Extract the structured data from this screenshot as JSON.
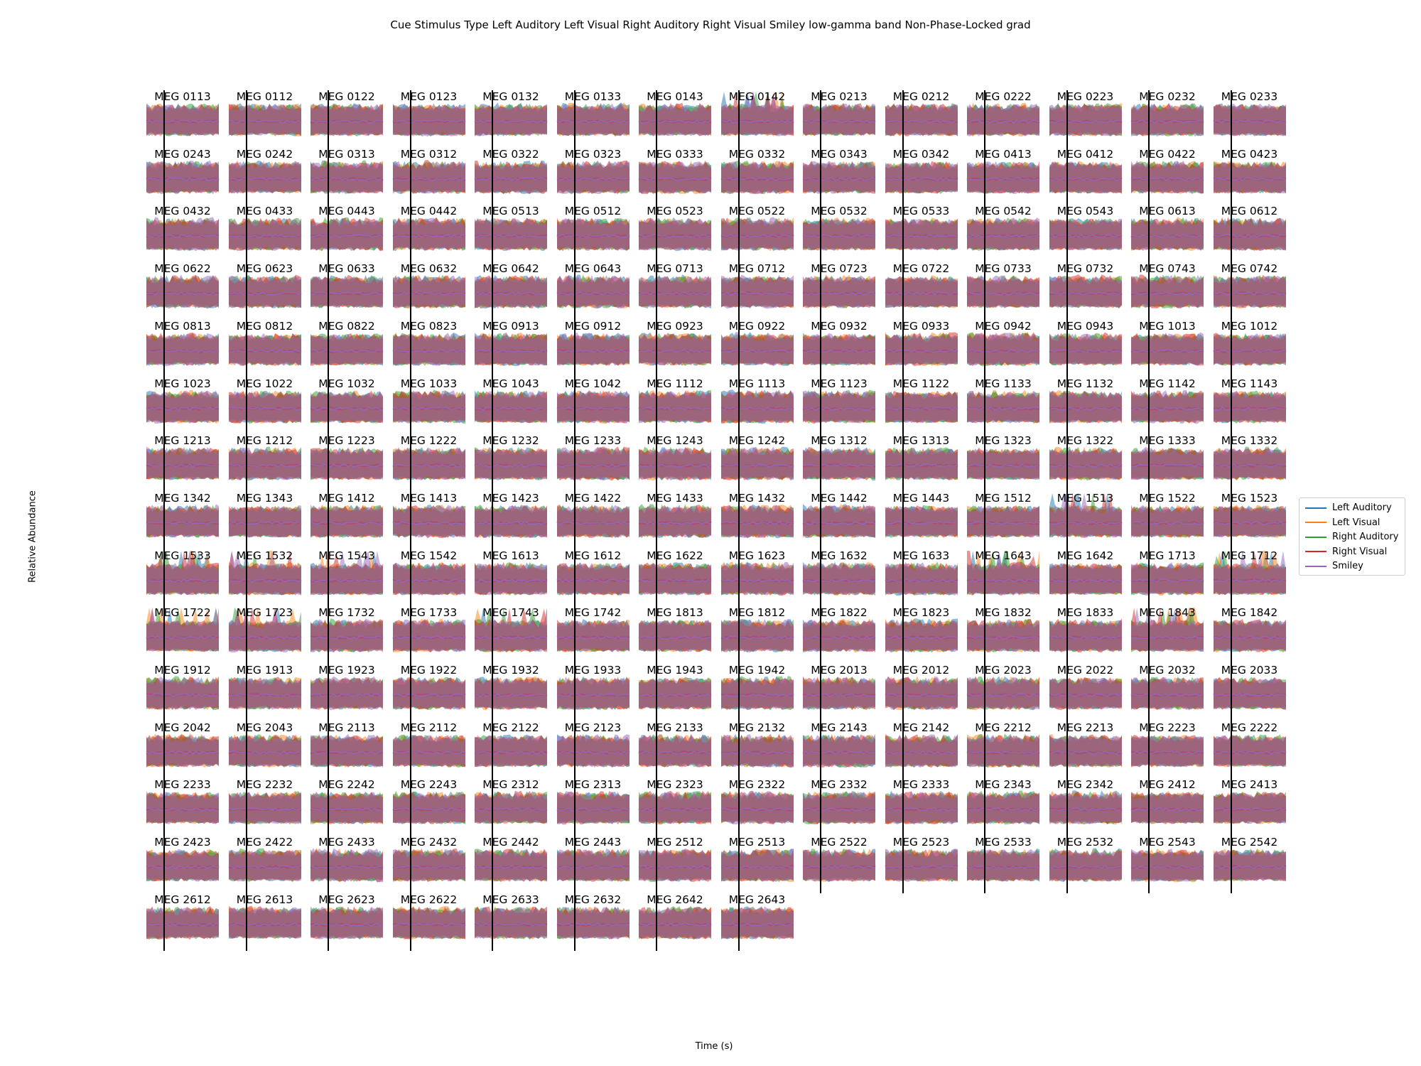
{
  "chart_data": {
    "type": "area",
    "title": "Cue Stimulus Type Left Auditory Left Visual Right Auditory Right Visual Smiley low-gamma band Non-Phase-Locked grad",
    "xlabel": "Time (s)",
    "ylabel": "Relative Abundance",
    "legend": {
      "placement": "right",
      "entries": [
        "Left Auditory",
        "Left Visual",
        "Right Auditory",
        "Right Visual",
        "Smiley"
      ]
    },
    "series_colors": {
      "Left Auditory": "#1f77b4",
      "Left Visual": "#ff7f0e",
      "Right Auditory": "#2ca02c",
      "Right Visual": "#d62728",
      "Smiley": "#9467bd"
    },
    "grid": false,
    "ticks_shown": false,
    "stimulus_marker": "vertical black line near start of each panel",
    "panels": [
      "MEG 0113",
      "MEG 0112",
      "MEG 0122",
      "MEG 0123",
      "MEG 0132",
      "MEG 0133",
      "MEG 0143",
      "MEG 0142",
      "MEG 0213",
      "MEG 0212",
      "MEG 0222",
      "MEG 0223",
      "MEG 0232",
      "MEG 0233",
      "MEG 0243",
      "MEG 0242",
      "MEG 0313",
      "MEG 0312",
      "MEG 0322",
      "MEG 0323",
      "MEG 0333",
      "MEG 0332",
      "MEG 0343",
      "MEG 0342",
      "MEG 0413",
      "MEG 0412",
      "MEG 0422",
      "MEG 0423",
      "MEG 0432",
      "MEG 0433",
      "MEG 0443",
      "MEG 0442",
      "MEG 0513",
      "MEG 0512",
      "MEG 0523",
      "MEG 0522",
      "MEG 0532",
      "MEG 0533",
      "MEG 0542",
      "MEG 0543",
      "MEG 0613",
      "MEG 0612",
      "MEG 0622",
      "MEG 0623",
      "MEG 0633",
      "MEG 0632",
      "MEG 0642",
      "MEG 0643",
      "MEG 0713",
      "MEG 0712",
      "MEG 0723",
      "MEG 0722",
      "MEG 0733",
      "MEG 0732",
      "MEG 0743",
      "MEG 0742",
      "MEG 0813",
      "MEG 0812",
      "MEG 0822",
      "MEG 0823",
      "MEG 0913",
      "MEG 0912",
      "MEG 0923",
      "MEG 0922",
      "MEG 0932",
      "MEG 0933",
      "MEG 0942",
      "MEG 0943",
      "MEG 1013",
      "MEG 1012",
      "MEG 1023",
      "MEG 1022",
      "MEG 1032",
      "MEG 1033",
      "MEG 1043",
      "MEG 1042",
      "MEG 1112",
      "MEG 1113",
      "MEG 1123",
      "MEG 1122",
      "MEG 1133",
      "MEG 1132",
      "MEG 1142",
      "MEG 1143",
      "MEG 1213",
      "MEG 1212",
      "MEG 1223",
      "MEG 1222",
      "MEG 1232",
      "MEG 1233",
      "MEG 1243",
      "MEG 1242",
      "MEG 1312",
      "MEG 1313",
      "MEG 1323",
      "MEG 1322",
      "MEG 1333",
      "MEG 1332",
      "MEG 1342",
      "MEG 1343",
      "MEG 1412",
      "MEG 1413",
      "MEG 1423",
      "MEG 1422",
      "MEG 1433",
      "MEG 1432",
      "MEG 1442",
      "MEG 1443",
      "MEG 1512",
      "MEG 1513",
      "MEG 1522",
      "MEG 1523",
      "MEG 1533",
      "MEG 1532",
      "MEG 1543",
      "MEG 1542",
      "MEG 1613",
      "MEG 1612",
      "MEG 1622",
      "MEG 1623",
      "MEG 1632",
      "MEG 1633",
      "MEG 1643",
      "MEG 1642",
      "MEG 1713",
      "MEG 1712",
      "MEG 1722",
      "MEG 1723",
      "MEG 1732",
      "MEG 1733",
      "MEG 1743",
      "MEG 1742",
      "MEG 1813",
      "MEG 1812",
      "MEG 1822",
      "MEG 1823",
      "MEG 1832",
      "MEG 1833",
      "MEG 1843",
      "MEG 1842",
      "MEG 1912",
      "MEG 1913",
      "MEG 1923",
      "MEG 1922",
      "MEG 1932",
      "MEG 1933",
      "MEG 1943",
      "MEG 1942",
      "MEG 2013",
      "MEG 2012",
      "MEG 2023",
      "MEG 2022",
      "MEG 2032",
      "MEG 2033",
      "MEG 2042",
      "MEG 2043",
      "MEG 2113",
      "MEG 2112",
      "MEG 2122",
      "MEG 2123",
      "MEG 2133",
      "MEG 2132",
      "MEG 2143",
      "MEG 2142",
      "MEG 2212",
      "MEG 2213",
      "MEG 2223",
      "MEG 2222",
      "MEG 2233",
      "MEG 2232",
      "MEG 2242",
      "MEG 2243",
      "MEG 2312",
      "MEG 2313",
      "MEG 2323",
      "MEG 2322",
      "MEG 2332",
      "MEG 2333",
      "MEG 2343",
      "MEG 2342",
      "MEG 2412",
      "MEG 2413",
      "MEG 2423",
      "MEG 2422",
      "MEG 2433",
      "MEG 2432",
      "MEG 2442",
      "MEG 2443",
      "MEG 2512",
      "MEG 2513",
      "MEG 2522",
      "MEG 2523",
      "MEG 2533",
      "MEG 2532",
      "MEG 2543",
      "MEG 2542",
      "MEG 2612",
      "MEG 2613",
      "MEG 2623",
      "MEG 2622",
      "MEG 2633",
      "MEG 2632",
      "MEG 2642",
      "MEG 2643"
    ],
    "panels_with_large_peaks": [
      "MEG 0142",
      "MEG 1513",
      "MEG 1533",
      "MEG 1532",
      "MEG 1543",
      "MEG 1643",
      "MEG 1843",
      "MEG 1712",
      "MEG 1722",
      "MEG 1723",
      "MEG 1743"
    ]
  }
}
